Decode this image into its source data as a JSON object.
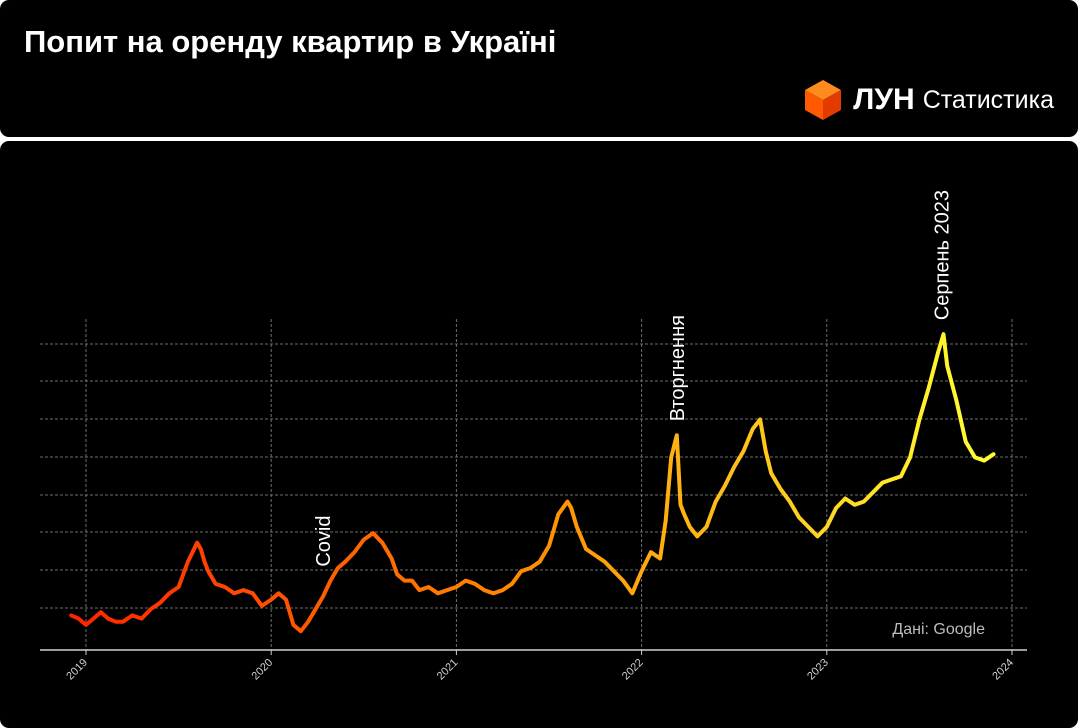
{
  "header": {
    "title": "Попит на оренду квартир в Україні",
    "brand_name": "ЛУН",
    "brand_sub": "Статистика"
  },
  "colors": {
    "background": "#000000",
    "text": "#ffffff",
    "grid": "#6e6e6e",
    "gradient_start": "#ff2200",
    "gradient_mid": "#ff8c00",
    "gradient_end": "#ffff33",
    "logo": "#ff6a00"
  },
  "chart_data": {
    "type": "line",
    "title": "",
    "xlabel": "",
    "ylabel": "",
    "x_ticks": [
      "2019",
      "2020",
      "2021",
      "2022",
      "2023",
      "2024"
    ],
    "xlim": [
      2018.85,
      2024.1
    ],
    "ylim": [
      0,
      100
    ],
    "y_tick_labels_shown": false,
    "grid": true,
    "source_note": "Дані: Google",
    "annotations": [
      {
        "text": "Covid",
        "x": 2020.28
      },
      {
        "text": "Вторгнення",
        "x": 2022.19
      },
      {
        "text": "Серпень 2023",
        "x": 2023.62
      }
    ],
    "series": [
      {
        "x": [
          2018.92,
          2018.96,
          2019.0,
          2019.04,
          2019.08,
          2019.12,
          2019.16,
          2019.2,
          2019.25,
          2019.3,
          2019.35,
          2019.4,
          2019.45,
          2019.5,
          2019.55,
          2019.6,
          2019.62,
          2019.64,
          2019.66,
          2019.7,
          2019.75,
          2019.8,
          2019.85,
          2019.9,
          2019.95,
          2020.0,
          2020.04,
          2020.08,
          2020.12,
          2020.16,
          2020.2,
          2020.24,
          2020.28,
          2020.32,
          2020.36,
          2020.4,
          2020.45,
          2020.5,
          2020.55,
          2020.6,
          2020.65,
          2020.68,
          2020.72,
          2020.76,
          2020.8,
          2020.85,
          2020.9,
          2020.95,
          2021.0,
          2021.05,
          2021.1,
          2021.15,
          2021.2,
          2021.25,
          2021.3,
          2021.35,
          2021.4,
          2021.45,
          2021.5,
          2021.55,
          2021.6,
          2021.62,
          2021.65,
          2021.7,
          2021.75,
          2021.8,
          2021.85,
          2021.9,
          2021.95,
          2022.0,
          2022.05,
          2022.1,
          2022.13,
          2022.16,
          2022.19,
          2022.21,
          2022.23,
          2022.26,
          2022.3,
          2022.35,
          2022.4,
          2022.45,
          2022.5,
          2022.55,
          2022.6,
          2022.64,
          2022.67,
          2022.7,
          2022.75,
          2022.8,
          2022.85,
          2022.9,
          2022.95,
          2023.0,
          2023.05,
          2023.1,
          2023.15,
          2023.2,
          2023.25,
          2023.3,
          2023.35,
          2023.4,
          2023.45,
          2023.5,
          2023.55,
          2023.6,
          2023.63,
          2023.65,
          2023.7,
          2023.75,
          2023.8,
          2023.85,
          2023.9
        ],
        "values": [
          10,
          9,
          7,
          9,
          11,
          9,
          8,
          8,
          10,
          9,
          12,
          14,
          17,
          19,
          27,
          33,
          31,
          27,
          24,
          20,
          19,
          17,
          18,
          17,
          13,
          15,
          17,
          15,
          7,
          5,
          8,
          12,
          16,
          21,
          25,
          27,
          30,
          34,
          36,
          33,
          28,
          23,
          21,
          21,
          18,
          19,
          17,
          18,
          19,
          21,
          20,
          18,
          17,
          18,
          20,
          24,
          25,
          27,
          32,
          42,
          46,
          44,
          38,
          31,
          29,
          27,
          24,
          21,
          17,
          24,
          30,
          28,
          40,
          60,
          67,
          45,
          42,
          38,
          35,
          38,
          46,
          51,
          57,
          62,
          69,
          72,
          62,
          55,
          50,
          46,
          41,
          38,
          35,
          38,
          44,
          47,
          45,
          46,
          49,
          52,
          53,
          54,
          60,
          72,
          82,
          93,
          99,
          89,
          78,
          65,
          60,
          59,
          61
        ]
      }
    ]
  }
}
